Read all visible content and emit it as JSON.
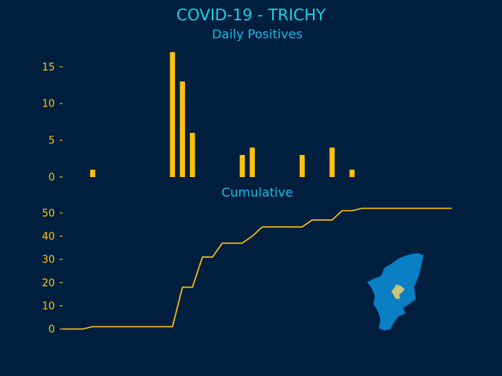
{
  "colors": {
    "background": "#001f3f",
    "title": "#13d3e6",
    "subtitle": "#1ab9e8",
    "bar": "#ffc20e",
    "line": "#ffc20e",
    "tick_label": "#ffc20e",
    "map_fill": "#0a7fc4",
    "map_highlight": "#c8c27a"
  },
  "title": "COVID-19 - TRICHY",
  "icons": {
    "map": "tamil-nadu-map-icon"
  },
  "chart_data": [
    {
      "type": "bar",
      "title": "Daily Positives",
      "ylim": [
        0,
        17
      ],
      "yticks": [
        0,
        5,
        10,
        15
      ],
      "x_range": [
        0,
        39
      ],
      "values": [
        0,
        0,
        0,
        1,
        0,
        0,
        0,
        0,
        0,
        0,
        0,
        17,
        13,
        6,
        0,
        0,
        0,
        0,
        3,
        4,
        0,
        0,
        0,
        0,
        3,
        0,
        0,
        4,
        0,
        1,
        0,
        0,
        0,
        0,
        0,
        0,
        0,
        0,
        0,
        0
      ],
      "grid": false,
      "x_axis_visible": false
    },
    {
      "type": "line",
      "title": "Cumulative",
      "ylim": [
        0,
        52
      ],
      "yticks": [
        0,
        10,
        20,
        30,
        40,
        50
      ],
      "x_range": [
        0,
        39
      ],
      "values": [
        0,
        0,
        0,
        1,
        1,
        1,
        1,
        1,
        1,
        1,
        1,
        1,
        18,
        18,
        31,
        31,
        37,
        37,
        37,
        40,
        44,
        44,
        44,
        44,
        44,
        47,
        47,
        47,
        51,
        51,
        52,
        52,
        52,
        52,
        52,
        52,
        52,
        52,
        52,
        52
      ],
      "grid": false,
      "x_axis_visible": false
    }
  ]
}
